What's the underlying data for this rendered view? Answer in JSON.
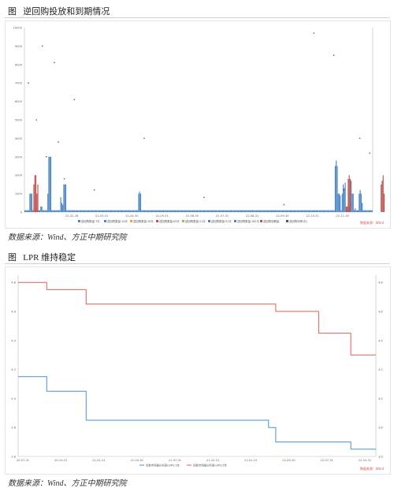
{
  "figure1": {
    "caption_label": "图",
    "caption_text": "逆回购投放和到期情况",
    "source": "数据来源：Wind、方正中期研究院",
    "watermark": "数据来源：Wind",
    "chart_data": {
      "type": "bar",
      "ylim": [
        0,
        10000
      ],
      "yticks": [
        0,
        1000,
        2000,
        3000,
        4000,
        5000,
        6000,
        7000,
        8000,
        9000,
        10000
      ],
      "xtick_labels": [
        "22-02-28",
        "22-03-31",
        "22-04-30",
        "22-05-31",
        "22-06-30",
        "22-07-31",
        "22-08-31",
        "22-09-30",
        "22-10-31",
        "22-11-30"
      ],
      "legend": [
        "逆回购数量:7天",
        "逆回购数量:14天",
        "逆回购数量:28天",
        "逆回购数量:63天",
        "逆回购数量:21天",
        "逆回购数量:91天",
        "逆回购数量:182天",
        "逆回购到期量",
        "逆回购利率(右)"
      ],
      "colors": {
        "blue": "#4a86c6",
        "red": "#c0504d"
      },
      "series": [
        {
          "name": "逆回购数量:7天",
          "color": "#4a86c6",
          "values": [
            100,
            100,
            100,
            100,
            100,
            1000,
            1000,
            1000,
            100,
            100,
            100,
            100,
            100,
            100,
            100,
            100,
            300,
            300,
            100,
            100,
            100,
            100,
            100,
            1000,
            3000,
            3000,
            3000,
            100,
            100,
            100,
            100,
            100,
            100,
            100,
            100,
            100,
            800,
            500,
            400,
            1500,
            1500,
            1500,
            100,
            100,
            100,
            100,
            100,
            100,
            100,
            100,
            100,
            100,
            100,
            100,
            100,
            100,
            100,
            100,
            100,
            100,
            100,
            100,
            100,
            100,
            100,
            100,
            100,
            100,
            100,
            100,
            100,
            100,
            100,
            100,
            100,
            100,
            100,
            100,
            100,
            100,
            100,
            100,
            100,
            100,
            100,
            100,
            100,
            100,
            100,
            100,
            100,
            100,
            100,
            100,
            100,
            100,
            100,
            100,
            100,
            100,
            100,
            100,
            100,
            100,
            100,
            100,
            100,
            100,
            100,
            100,
            100,
            100,
            100,
            100,
            1000,
            1100,
            1000,
            100,
            100,
            100,
            100,
            100,
            100,
            100,
            100,
            100,
            100,
            100,
            100,
            100,
            100,
            100,
            100,
            100,
            100,
            100,
            100,
            100,
            100,
            100,
            100,
            100,
            100,
            100,
            100,
            100,
            100,
            100,
            100,
            100,
            100,
            100,
            100,
            100,
            100,
            100,
            100,
            100,
            100,
            100,
            100,
            100,
            100,
            100,
            100,
            100,
            100,
            100,
            100,
            100,
            100,
            100,
            100,
            100,
            100,
            100,
            100,
            100,
            100,
            100,
            100,
            100,
            100,
            100,
            100,
            100,
            100,
            100,
            100,
            100,
            100,
            100,
            100,
            100,
            100,
            100,
            100,
            100,
            100,
            100,
            100,
            100,
            100,
            100,
            100,
            100,
            100,
            100,
            100,
            100,
            100,
            100,
            100,
            100,
            100,
            100,
            100,
            100,
            100,
            100,
            100,
            100,
            100,
            100,
            100,
            100,
            100,
            100,
            100,
            100,
            100,
            100,
            100,
            100,
            100,
            100,
            100,
            100,
            100,
            100,
            100,
            100,
            100,
            100,
            100,
            100,
            100,
            100,
            100,
            100,
            100,
            100,
            100,
            100,
            100,
            100,
            100,
            100,
            100,
            100,
            100,
            100,
            100,
            100,
            100,
            100,
            100,
            100,
            100,
            100,
            100,
            100,
            100,
            100,
            100,
            100,
            100,
            100,
            100,
            100,
            100,
            100,
            100,
            100,
            100,
            100,
            100,
            100,
            100,
            100,
            100,
            100,
            100,
            100,
            100,
            100,
            100,
            100,
            100,
            100,
            100,
            100,
            100,
            100,
            100,
            100,
            100,
            100,
            100,
            100,
            100,
            2500,
            2800,
            2500,
            1000,
            1000,
            900,
            100,
            1000,
            1500,
            1300,
            1600,
            100,
            100,
            100,
            300,
            1000,
            1700,
            1000,
            1000,
            100,
            200,
            100,
            100,
            100,
            1000,
            1200,
            1000,
            500,
            100,
            100,
            100,
            100,
            100,
            100,
            100,
            100,
            100,
            100
          ]
        },
        {
          "name": "逆回购到期量",
          "color": "#c0504d",
          "values": [
            0,
            0,
            0,
            0,
            0,
            0,
            0,
            0,
            0,
            1500,
            2000,
            2000,
            1000,
            1500,
            0,
            0,
            0,
            0,
            0,
            0,
            0,
            0,
            0,
            0,
            0,
            0,
            0,
            0,
            0,
            0,
            0,
            0,
            0,
            0,
            0,
            0,
            0,
            0,
            0,
            0,
            0,
            0,
            0,
            0,
            0,
            0,
            0,
            0,
            0,
            0,
            0,
            0,
            0,
            0,
            0,
            0,
            0,
            0,
            0,
            0,
            0,
            0,
            0,
            0,
            0,
            0,
            0,
            0,
            0,
            0,
            0,
            0,
            0,
            0,
            0,
            0,
            0,
            0,
            0,
            0,
            0,
            0,
            0,
            0,
            0,
            0,
            0,
            0,
            0,
            0,
            0,
            0,
            0,
            0,
            0,
            0,
            0,
            0,
            0,
            0,
            0,
            0,
            0,
            0,
            0,
            0,
            0,
            0,
            0,
            0,
            0,
            0,
            0,
            0,
            0,
            0,
            0,
            0,
            0,
            0,
            0,
            0,
            0,
            0,
            0,
            0,
            0,
            0,
            0,
            0,
            0,
            0,
            0,
            0,
            0,
            0,
            0,
            0,
            0,
            0,
            0,
            0,
            0,
            0,
            0,
            0,
            0,
            0,
            0,
            0,
            0,
            0,
            0,
            0,
            0,
            0,
            0,
            0,
            0,
            0,
            0,
            0,
            0,
            0,
            0,
            0,
            0,
            0,
            0,
            0,
            0,
            0,
            0,
            0,
            0,
            0,
            0,
            0,
            0,
            0,
            0,
            0,
            0,
            0,
            0,
            0,
            0,
            0,
            0,
            0,
            0,
            0,
            0,
            0,
            0,
            0,
            0,
            0,
            0,
            0,
            0,
            0,
            0,
            0,
            0,
            0,
            0,
            0,
            0,
            0,
            0,
            0,
            0,
            0,
            0,
            0,
            0,
            0,
            0,
            0,
            0,
            0,
            0,
            0,
            0,
            0,
            0,
            0,
            0,
            0,
            0,
            0,
            0,
            0,
            0,
            0,
            0,
            0,
            0,
            0,
            0,
            0,
            0,
            0,
            0,
            0,
            0,
            0,
            0,
            0,
            0,
            0,
            0,
            0,
            0,
            0,
            0,
            0,
            0,
            0,
            0,
            0,
            0,
            0,
            0,
            0,
            0,
            0,
            0,
            0,
            0,
            0,
            0,
            0,
            0,
            0,
            0,
            0,
            0,
            0,
            0,
            0,
            0,
            0,
            0,
            0,
            0,
            0,
            0,
            0,
            0,
            0,
            0,
            0,
            0,
            0,
            0,
            0,
            0,
            0,
            0,
            0,
            0,
            0,
            0,
            0,
            0,
            0,
            0,
            0,
            0,
            0,
            0,
            0,
            0,
            0,
            0,
            0,
            0,
            0,
            0,
            0,
            300,
            300,
            1800,
            2000,
            1800,
            0,
            0,
            0,
            0,
            0,
            0,
            0,
            0,
            0,
            0,
            0,
            0,
            0,
            0,
            0,
            0,
            0,
            0,
            0,
            0,
            0,
            0,
            0,
            0,
            0,
            0,
            0,
            0,
            0,
            0,
            1500,
            1700,
            2000,
            1000
          ]
        }
      ],
      "scatter": [
        {
          "i": 4,
          "y": 7000
        },
        {
          "i": 18,
          "y": 9000
        },
        {
          "i": 30,
          "y": 8100
        },
        {
          "i": 22,
          "y": 3000
        },
        {
          "i": 12,
          "y": 5000
        },
        {
          "i": 34,
          "y": 3800
        },
        {
          "i": 50,
          "y": 6100
        },
        {
          "i": 120,
          "y": 4000
        },
        {
          "i": 290,
          "y": 9700
        },
        {
          "i": 310,
          "y": 8500
        },
        {
          "i": 336,
          "y": 4000
        },
        {
          "i": 346,
          "y": 3200
        },
        {
          "i": 40,
          "y": 1800
        },
        {
          "i": 70,
          "y": 1200
        },
        {
          "i": 180,
          "y": 800
        },
        {
          "i": 260,
          "y": 400
        },
        {
          "i": 320,
          "y": 1200
        }
      ]
    }
  },
  "figure2": {
    "caption_label": "图",
    "caption_text": "LPR 维持稳定",
    "source": "数据来源：Wind、方正中期研究院",
    "watermark": "数据来源：Wind",
    "chart_data": {
      "type": "line",
      "xtick_labels": [
        "20-07-31",
        "20-10-31",
        "21-01-31",
        "21-04-30",
        "21-07-31",
        "21-10-31",
        "22-01-31",
        "22-04-30",
        "22-07-31",
        "22-10-31"
      ],
      "first_xtick": "20-07-31",
      "legend": [
        "贷款市场报价利率(LPR):1年",
        "贷款市场报价利率(LPR):5年"
      ],
      "series": [
        {
          "name": "贷款市场报价利率(LPR):5年",
          "color": "#e06050",
          "points": [
            [
              0,
              4.8
            ],
            [
              0.08,
              4.8
            ],
            [
              0.08,
              4.75
            ],
            [
              0.19,
              4.75
            ],
            [
              0.19,
              4.65
            ],
            [
              0.72,
              4.65
            ],
            [
              0.72,
              4.6
            ],
            [
              0.84,
              4.6
            ],
            [
              0.84,
              4.45
            ],
            [
              0.93,
              4.45
            ],
            [
              0.93,
              4.3
            ],
            [
              1.0,
              4.3
            ]
          ]
        },
        {
          "name": "贷款市场报价利率(LPR):1年",
          "color": "#4a90d9",
          "points": [
            [
              0,
              4.15
            ],
            [
              0.08,
              4.15
            ],
            [
              0.08,
              4.05
            ],
            [
              0.19,
              4.05
            ],
            [
              0.19,
              3.85
            ],
            [
              0.7,
              3.85
            ],
            [
              0.7,
              3.8
            ],
            [
              0.72,
              3.8
            ],
            [
              0.72,
              3.7
            ],
            [
              0.93,
              3.7
            ],
            [
              0.93,
              3.65
            ],
            [
              1.0,
              3.65
            ]
          ]
        }
      ],
      "ylim": [
        3.6,
        4.85
      ]
    }
  }
}
